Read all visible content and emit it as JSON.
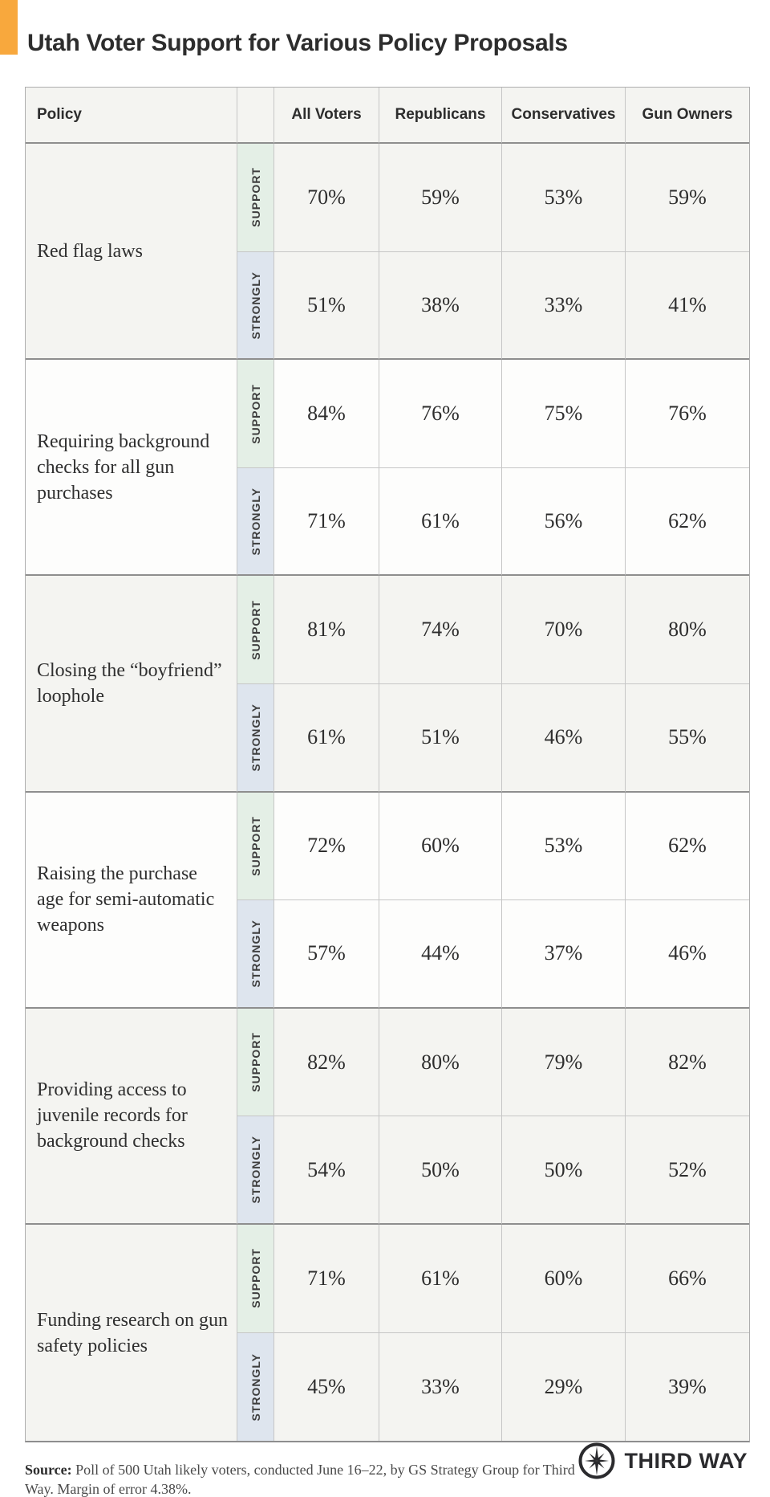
{
  "title": "Utah Voter Support for Various Policy Proposals",
  "colors": {
    "accent_orange": "#f8a83d",
    "support_green": "#e4efe6",
    "strongly_blue": "#dee5ee",
    "cell_shaded": "#f4f4f1",
    "cell_plain": "#fdfdfc"
  },
  "chart_data": {
    "type": "table",
    "title": "Utah Voter Support for Various Policy Proposals",
    "columns": [
      "All Voters",
      "Republicans",
      "Conservatives",
      "Gun Owners"
    ],
    "measures": [
      "SUPPORT",
      "STRONGLY"
    ],
    "rows": [
      {
        "policy": "Red flag laws",
        "support": [
          70,
          59,
          53,
          59
        ],
        "strongly": [
          51,
          38,
          33,
          41
        ]
      },
      {
        "policy": "Requiring background checks for all gun purchases",
        "support": [
          84,
          76,
          75,
          76
        ],
        "strongly": [
          71,
          61,
          56,
          62
        ]
      },
      {
        "policy": "Closing the “boyfriend” loophole",
        "support": [
          81,
          74,
          70,
          80
        ],
        "strongly": [
          61,
          51,
          46,
          55
        ]
      },
      {
        "policy": "Raising the purchase age for semi-automatic weapons",
        "support": [
          72,
          60,
          53,
          62
        ],
        "strongly": [
          57,
          44,
          37,
          46
        ]
      },
      {
        "policy": "Providing access to juvenile records for background checks",
        "support": [
          82,
          80,
          79,
          82
        ],
        "strongly": [
          54,
          50,
          50,
          52
        ]
      },
      {
        "policy": "Funding research on gun safety policies",
        "support": [
          71,
          61,
          60,
          66
        ],
        "strongly": [
          45,
          33,
          29,
          39
        ]
      }
    ]
  },
  "table": {
    "policy_header": "Policy",
    "group_headers": [
      "All Voters",
      "Republicans",
      "Conservatives",
      "Gun Owners"
    ],
    "row_labels": {
      "support": "SUPPORT",
      "strongly": "STRONGLY"
    },
    "rows": [
      {
        "policy": "Red flag laws",
        "shaded": true,
        "support": [
          "70%",
          "59%",
          "53%",
          "59%"
        ],
        "strongly": [
          "51%",
          "38%",
          "33%",
          "41%"
        ]
      },
      {
        "policy": "Requiring background checks for all gun purchases",
        "shaded": false,
        "support": [
          "84%",
          "76%",
          "75%",
          "76%"
        ],
        "strongly": [
          "71%",
          "61%",
          "56%",
          "62%"
        ]
      },
      {
        "policy": "Closing the “boyfriend” loophole",
        "shaded": true,
        "support": [
          "81%",
          "74%",
          "70%",
          "80%"
        ],
        "strongly": [
          "61%",
          "51%",
          "46%",
          "55%"
        ]
      },
      {
        "policy": "Raising the purchase age for semi-automatic weapons",
        "shaded": false,
        "support": [
          "72%",
          "60%",
          "53%",
          "62%"
        ],
        "strongly": [
          "57%",
          "44%",
          "37%",
          "46%"
        ]
      },
      {
        "policy": "Providing access to juvenile records for background checks",
        "shaded": true,
        "support": [
          "82%",
          "80%",
          "79%",
          "82%"
        ],
        "strongly": [
          "54%",
          "50%",
          "50%",
          "52%"
        ]
      },
      {
        "policy": "Funding research on gun safety policies",
        "shaded": true,
        "support": [
          "71%",
          "61%",
          "60%",
          "66%"
        ],
        "strongly": [
          "45%",
          "33%",
          "29%",
          "39%"
        ]
      }
    ]
  },
  "footer": {
    "source_label": "Source:",
    "source_text": " Poll of 500 Utah likely voters, conducted June 16–22, by GS Strategy Group for Third Way. Margin of error 4.38%.",
    "logo_text": "THIRD WAY",
    "logo_icon": "compass-icon"
  }
}
